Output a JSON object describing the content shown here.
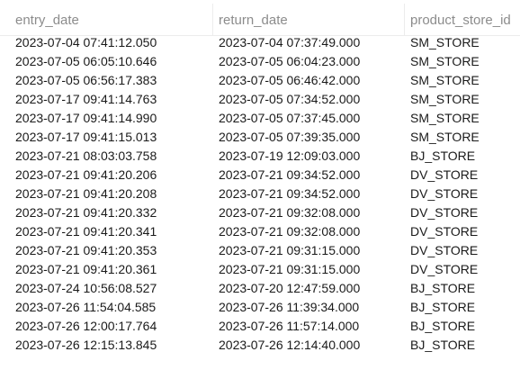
{
  "table": {
    "columns": [
      "entry_date",
      "return_date",
      "product_store_id"
    ],
    "rows": [
      [
        "2023-07-04 07:41:12.050",
        "2023-07-04 07:37:49.000",
        "SM_STORE"
      ],
      [
        "2023-07-05 06:05:10.646",
        "2023-07-05 06:04:23.000",
        "SM_STORE"
      ],
      [
        "2023-07-05 06:56:17.383",
        "2023-07-05 06:46:42.000",
        "SM_STORE"
      ],
      [
        "2023-07-17 09:41:14.763",
        "2023-07-05 07:34:52.000",
        "SM_STORE"
      ],
      [
        "2023-07-17 09:41:14.990",
        "2023-07-05 07:37:45.000",
        "SM_STORE"
      ],
      [
        "2023-07-17 09:41:15.013",
        "2023-07-05 07:39:35.000",
        "SM_STORE"
      ],
      [
        "2023-07-21 08:03:03.758",
        "2023-07-19 12:09:03.000",
        "BJ_STORE"
      ],
      [
        "2023-07-21 09:41:20.206",
        "2023-07-21 09:34:52.000",
        "DV_STORE"
      ],
      [
        "2023-07-21 09:41:20.208",
        "2023-07-21 09:34:52.000",
        "DV_STORE"
      ],
      [
        "2023-07-21 09:41:20.332",
        "2023-07-21 09:32:08.000",
        "DV_STORE"
      ],
      [
        "2023-07-21 09:41:20.341",
        "2023-07-21 09:32:08.000",
        "DV_STORE"
      ],
      [
        "2023-07-21 09:41:20.353",
        "2023-07-21 09:31:15.000",
        "DV_STORE"
      ],
      [
        "2023-07-21 09:41:20.361",
        "2023-07-21 09:31:15.000",
        "DV_STORE"
      ],
      [
        "2023-07-24 10:56:08.527",
        "2023-07-20 12:47:59.000",
        "BJ_STORE"
      ],
      [
        "2023-07-26 11:54:04.585",
        "2023-07-26 11:39:34.000",
        "BJ_STORE"
      ],
      [
        "2023-07-26 12:00:17.764",
        "2023-07-26 11:57:14.000",
        "BJ_STORE"
      ],
      [
        "2023-07-26 12:15:13.845",
        "2023-07-26 12:14:40.000",
        "BJ_STORE"
      ]
    ]
  }
}
